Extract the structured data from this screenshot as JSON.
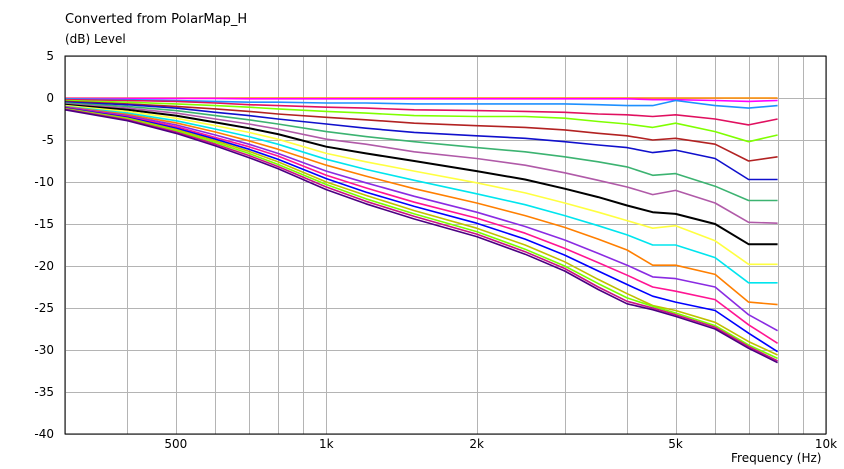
{
  "chart_data": {
    "type": "line",
    "title": "Converted from PolarMap_H",
    "ylabel": "(dB)  Level",
    "xlabel": "Frequency  (Hz)",
    "x_scale": "log",
    "xlim": [
      300,
      10000
    ],
    "ylim": [
      -40,
      5
    ],
    "grid": true,
    "legend": "none",
    "x_tick_labels": [
      {
        "value": 500,
        "label": "500"
      },
      {
        "value": 1000,
        "label": "1k"
      },
      {
        "value": 2000,
        "label": "2k"
      },
      {
        "value": 5000,
        "label": "5k"
      },
      {
        "value": 10000,
        "label": "10k"
      }
    ],
    "y_ticks": [
      5,
      0,
      -5,
      -10,
      -15,
      -20,
      -25,
      -30,
      -35,
      -40
    ],
    "x": [
      300,
      400,
      500,
      600,
      700,
      800,
      1000,
      1200,
      1500,
      2000,
      2500,
      3000,
      3500,
      4000,
      4500,
      5000,
      6000,
      7000,
      8000
    ],
    "series": [
      {
        "color": "#ff8c00",
        "values": [
          0,
          0,
          0,
          0,
          0,
          0,
          0,
          0,
          0,
          0,
          0,
          0,
          0,
          0,
          0,
          0,
          0,
          0,
          0
        ]
      },
      {
        "color": "#ff00ff",
        "values": [
          -0.05,
          -0.05,
          -0.05,
          -0.05,
          -0.1,
          -0.1,
          -0.1,
          -0.1,
          -0.1,
          -0.1,
          -0.1,
          -0.1,
          -0.1,
          -0.1,
          -0.2,
          -0.2,
          -0.3,
          -0.4,
          -0.3
        ]
      },
      {
        "color": "#1e90ff",
        "values": [
          -0.1,
          -0.2,
          -0.3,
          -0.4,
          -0.5,
          -0.5,
          -0.6,
          -0.6,
          -0.7,
          -0.7,
          -0.7,
          -0.7,
          -0.8,
          -0.9,
          -0.9,
          -0.3,
          -0.9,
          -1.2,
          -0.9
        ]
      },
      {
        "color": "#e0105f",
        "values": [
          -0.2,
          -0.3,
          -0.4,
          -0.6,
          -0.8,
          -0.9,
          -1.1,
          -1.2,
          -1.4,
          -1.5,
          -1.6,
          -1.7,
          -1.9,
          -2.0,
          -2.2,
          -2.0,
          -2.5,
          -3.2,
          -2.5
        ]
      },
      {
        "color": "#7fff00",
        "values": [
          -0.3,
          -0.5,
          -0.7,
          -0.9,
          -1.1,
          -1.3,
          -1.6,
          -1.8,
          -2.1,
          -2.2,
          -2.2,
          -2.4,
          -2.8,
          -3.1,
          -3.5,
          -3.0,
          -4.0,
          -5.2,
          -4.4
        ]
      },
      {
        "color": "#b22222",
        "values": [
          -0.4,
          -0.7,
          -1.0,
          -1.3,
          -1.6,
          -1.9,
          -2.3,
          -2.6,
          -3.0,
          -3.3,
          -3.5,
          -3.8,
          -4.2,
          -4.5,
          -5.0,
          -4.8,
          -5.5,
          -7.5,
          -7.0
        ]
      },
      {
        "color": "#1010cc",
        "values": [
          -0.5,
          -0.8,
          -1.2,
          -1.7,
          -2.1,
          -2.5,
          -3.1,
          -3.6,
          -4.1,
          -4.5,
          -4.8,
          -5.2,
          -5.6,
          -5.9,
          -6.5,
          -6.2,
          -7.2,
          -9.7,
          -9.7
        ]
      },
      {
        "color": "#3cb371",
        "values": [
          -0.6,
          -1.0,
          -1.5,
          -2.1,
          -2.6,
          -3.1,
          -4.0,
          -4.6,
          -5.2,
          -5.9,
          -6.4,
          -7.0,
          -7.6,
          -8.2,
          -9.2,
          -9.0,
          -10.5,
          -12.2,
          -12.2
        ]
      },
      {
        "color": "#b05aa8",
        "values": [
          -0.7,
          -1.2,
          -1.8,
          -2.5,
          -3.1,
          -3.7,
          -4.9,
          -5.5,
          -6.4,
          -7.2,
          -8.0,
          -8.9,
          -9.8,
          -10.6,
          -11.5,
          -11.0,
          -12.5,
          -14.8,
          -14.9
        ]
      },
      {
        "color": "#000000",
        "values": [
          -0.8,
          -1.4,
          -2.1,
          -2.9,
          -3.6,
          -4.3,
          -5.8,
          -6.6,
          -7.5,
          -8.7,
          -9.7,
          -10.8,
          -11.8,
          -12.8,
          -13.6,
          -13.8,
          -15.0,
          -17.4,
          -17.4
        ]
      },
      {
        "color": "#ffff40",
        "values": [
          -0.9,
          -1.6,
          -2.4,
          -3.3,
          -4.1,
          -4.9,
          -6.6,
          -7.6,
          -8.7,
          -10.1,
          -11.3,
          -12.5,
          -13.6,
          -14.6,
          -15.5,
          -15.2,
          -17.0,
          -19.8,
          -19.8
        ]
      },
      {
        "color": "#00e5ee",
        "values": [
          -1.0,
          -1.8,
          -2.7,
          -3.7,
          -4.6,
          -5.5,
          -7.3,
          -8.5,
          -9.8,
          -11.4,
          -12.7,
          -14.0,
          -15.2,
          -16.3,
          -17.5,
          -17.5,
          -19.0,
          -22.0,
          -22.0
        ]
      },
      {
        "color": "#ff7f00",
        "values": [
          -1.05,
          -1.95,
          -2.95,
          -4.05,
          -5.1,
          -6.1,
          -8.0,
          -9.3,
          -10.8,
          -12.5,
          -14.0,
          -15.4,
          -16.8,
          -18.1,
          -19.9,
          -19.9,
          -21.0,
          -24.3,
          -24.6
        ]
      },
      {
        "color": "#8a2be2",
        "values": [
          -1.1,
          -2.1,
          -3.2,
          -4.4,
          -5.5,
          -6.6,
          -8.7,
          -10.1,
          -11.7,
          -13.6,
          -15.3,
          -16.9,
          -18.5,
          -19.9,
          -21.3,
          -21.5,
          -22.5,
          -25.8,
          -27.7
        ]
      },
      {
        "color": "#ff1493",
        "values": [
          -1.15,
          -2.2,
          -3.4,
          -4.7,
          -5.8,
          -6.9,
          -9.2,
          -10.7,
          -12.4,
          -14.3,
          -16.1,
          -17.9,
          -19.6,
          -21.1,
          -22.5,
          -23.0,
          -24.0,
          -27.0,
          -29.2
        ]
      },
      {
        "color": "#0000ff",
        "values": [
          -1.2,
          -2.3,
          -3.6,
          -4.9,
          -6.1,
          -7.3,
          -9.6,
          -11.2,
          -12.9,
          -14.9,
          -16.8,
          -18.7,
          -20.6,
          -22.2,
          -23.6,
          -24.3,
          -25.3,
          -28.0,
          -30.2
        ]
      },
      {
        "color": "#c0c000",
        "values": [
          -1.25,
          -2.4,
          -3.75,
          -5.1,
          -6.35,
          -7.6,
          -10.0,
          -11.6,
          -13.4,
          -15.5,
          -17.5,
          -19.5,
          -21.6,
          -23.3,
          -24.7,
          -25.3,
          -26.7,
          -29.0,
          -30.6
        ]
      },
      {
        "color": "#7cfc00",
        "values": [
          -1.3,
          -2.5,
          -3.9,
          -5.3,
          -6.6,
          -7.9,
          -10.3,
          -12.0,
          -13.8,
          -15.9,
          -18.0,
          -20.0,
          -22.1,
          -23.8,
          -24.8,
          -25.6,
          -27.1,
          -29.4,
          -31.0
        ]
      },
      {
        "color": "#c71585",
        "values": [
          -1.35,
          -2.6,
          -4.05,
          -5.5,
          -6.85,
          -8.15,
          -10.6,
          -12.3,
          -14.1,
          -16.2,
          -18.3,
          -20.3,
          -22.5,
          -24.2,
          -25.0,
          -25.8,
          -27.3,
          -29.6,
          -31.3
        ]
      },
      {
        "color": "#4b0082",
        "values": [
          -1.4,
          -2.7,
          -4.2,
          -5.7,
          -7.1,
          -8.4,
          -10.9,
          -12.6,
          -14.4,
          -16.5,
          -18.6,
          -20.6,
          -22.8,
          -24.5,
          -25.2,
          -26.0,
          -27.5,
          -29.8,
          -31.5
        ]
      }
    ]
  }
}
